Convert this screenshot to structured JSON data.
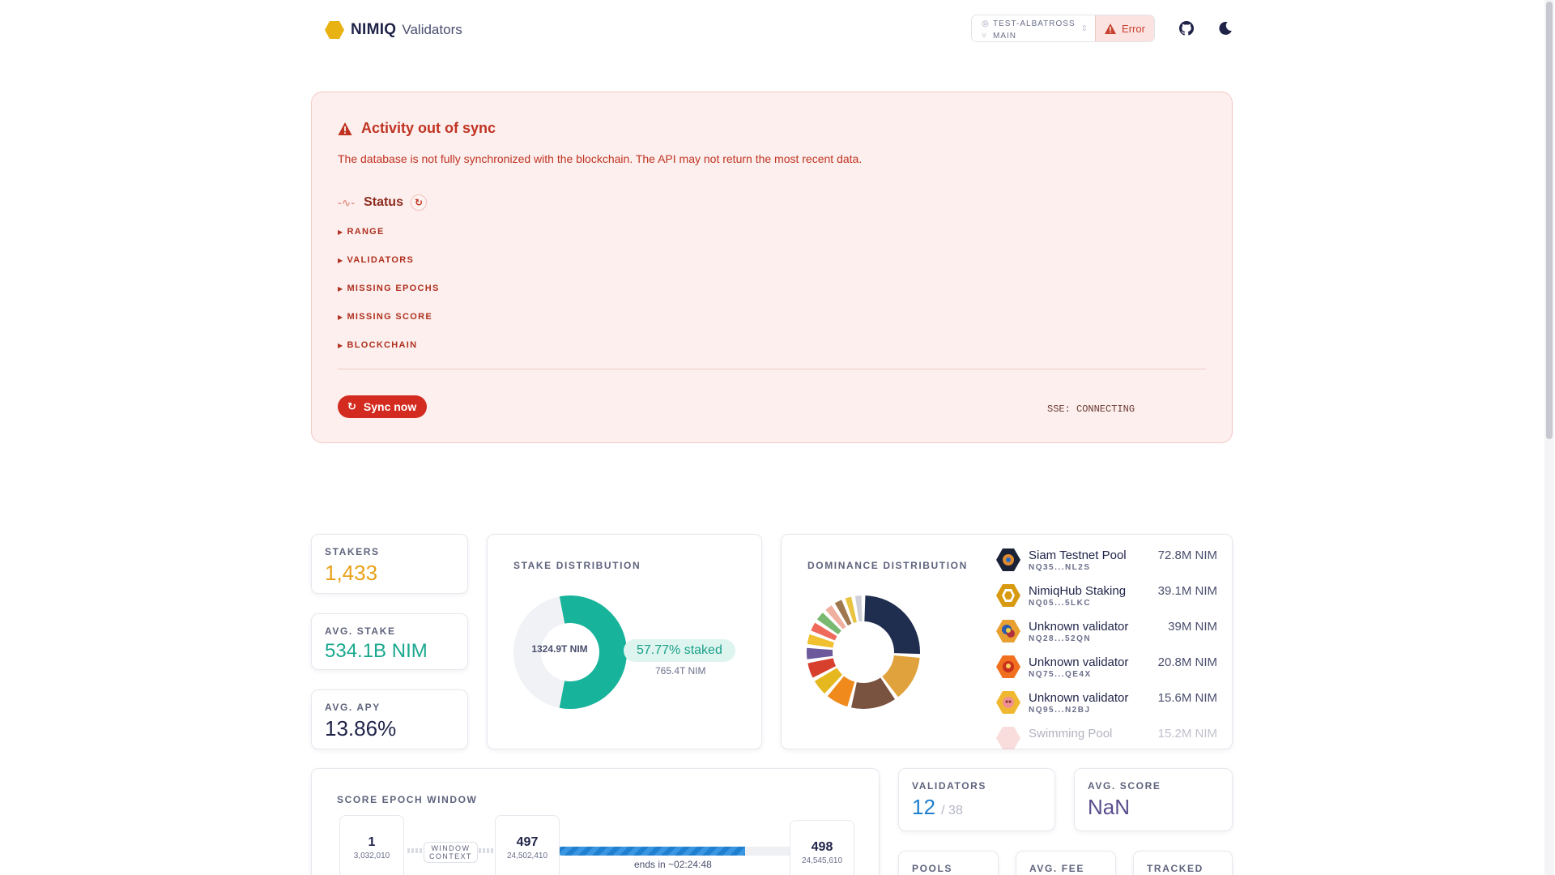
{
  "header": {
    "brand": "NIMIQ",
    "subtitle": "Validators",
    "network": "TEST-ALBATROSS",
    "branch": "MAIN",
    "status": "Error"
  },
  "alert": {
    "title": "Activity out of sync",
    "description": "The database is not fully synchronized with the blockchain. The API may not return the most recent data.",
    "status_label": "Status",
    "details": [
      "RANGE",
      "VALIDATORS",
      "MISSING EPOCHS",
      "MISSING SCORE",
      "BLOCKCHAIN"
    ],
    "sync_button": "Sync now",
    "sse": "SSE: CONNECTING"
  },
  "stats": {
    "stakers_label": "STAKERS",
    "stakers": "1,433",
    "avg_stake_label": "AVG. STAKE",
    "avg_stake": "534.1B NIM",
    "avg_apy_label": "AVG. APY",
    "avg_apy": "13.86%"
  },
  "stake_distribution": {
    "label": "STAKE DISTRIBUTION",
    "center": "1324.9T NIM",
    "staked_pct": "57.77% staked",
    "staked_amount": "765.4T NIM",
    "staked_fraction": 0.5777
  },
  "dominance": {
    "label": "DOMINANCE DISTRIBUTION",
    "validators": [
      {
        "name": "Siam Testnet Pool",
        "address": "NQ35...NL2S",
        "amount": "72.8M NIM"
      },
      {
        "name": "NimiqHub Staking",
        "address": "NQ05...5LKC",
        "amount": "39.1M NIM"
      },
      {
        "name": "Unknown validator",
        "address": "NQ28...52QN",
        "amount": "39M NIM"
      },
      {
        "name": "Unknown validator",
        "address": "NQ75...QE4X",
        "amount": "20.8M NIM"
      },
      {
        "name": "Unknown validator",
        "address": "NQ95...N2BJ",
        "amount": "15.6M NIM"
      },
      {
        "name": "Swimming Pool",
        "address": "",
        "amount": "15.2M NIM"
      }
    ],
    "colors": [
      "#1f2d4e",
      "#e0a23c",
      "#7a5240",
      "#f08a1c",
      "#e6b820",
      "#d8402e",
      "#6c5a9c",
      "#f0c030",
      "#ef6a5a",
      "#78b870",
      "#f0b0a0",
      "#a07850",
      "#e8c440",
      "#d0d0d8"
    ]
  },
  "score_epoch": {
    "label": "SCORE EPOCH WINDOW",
    "start_epoch": "1",
    "start_block": "3,032,010",
    "window_label_1": "WINDOW",
    "window_label_2": "CONTEXT",
    "current_epoch": "497",
    "current_block": "24,502,410",
    "next_epoch": "498",
    "next_block": "24,545,610",
    "ends_in": "ends in ~02:24:48",
    "progress": 0.79
  },
  "right_stats": {
    "validators_label": "VALIDATORS",
    "validators_active": "12",
    "validators_total": "/ 38",
    "avg_score_label": "AVG. SCORE",
    "avg_score": "NaN",
    "pools_label": "POOLS",
    "avg_fee_label": "AVG. FEE",
    "tracked_label": "TRACKED"
  }
}
